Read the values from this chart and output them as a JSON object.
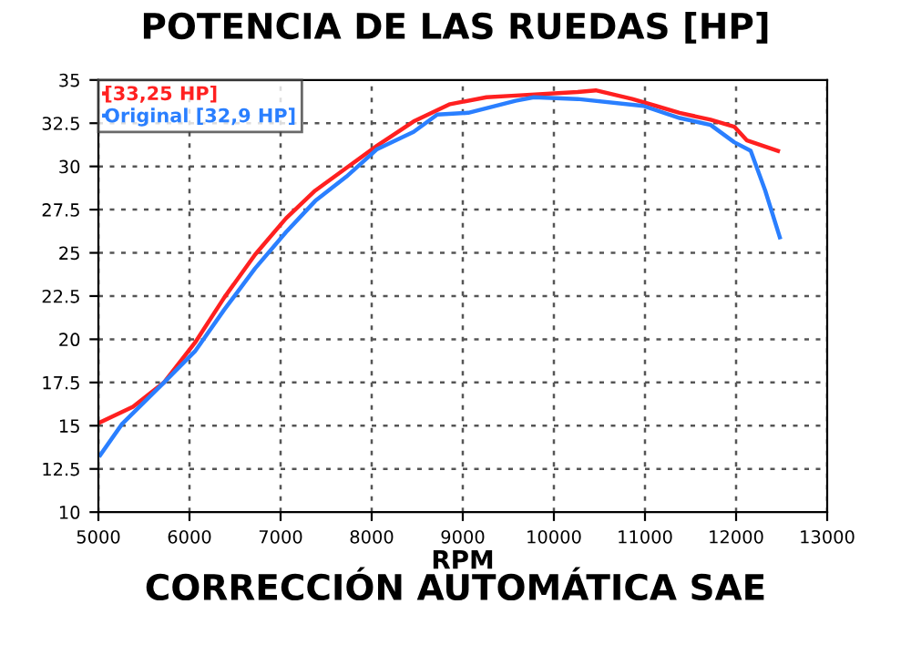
{
  "chart_data": {
    "type": "line",
    "title": "POTENCIA DE LAS RUEDAS [HP]",
    "xlabel": "RPM",
    "annotations": [
      "CORRECCIÓN AUTOMÁTICA SAE"
    ],
    "series": [
      {
        "name": "[33,25 HP]",
        "color": "#ff2020",
        "x": [
          5020,
          5380,
          5720,
          6060,
          6380,
          6720,
          7060,
          7380,
          7720,
          8060,
          8460,
          8860,
          9260,
          9580,
          10260,
          10460,
          10860,
          11120,
          11380,
          11720,
          11980,
          12120,
          12460
        ],
        "values": [
          15.2,
          16.1,
          17.5,
          19.8,
          22.4,
          24.9,
          27.0,
          28.6,
          29.9,
          31.2,
          32.6,
          33.6,
          34.0,
          34.1,
          34.3,
          34.4,
          33.9,
          33.5,
          33.1,
          32.7,
          32.3,
          31.5,
          30.9
        ]
      },
      {
        "name": "Original [32,9 HP]",
        "color": "#2a7fff",
        "x": [
          5020,
          5260,
          5720,
          6060,
          6380,
          6720,
          7060,
          7380,
          7720,
          8060,
          8460,
          8720,
          9060,
          9580,
          9780,
          10260,
          10980,
          11380,
          11720,
          11980,
          12160,
          12320,
          12480
        ],
        "values": [
          13.3,
          15.1,
          17.5,
          19.3,
          21.7,
          24.1,
          26.2,
          28.0,
          29.4,
          31.0,
          32.0,
          33.0,
          33.1,
          33.8,
          34.0,
          33.9,
          33.5,
          32.8,
          32.4,
          31.4,
          30.9,
          28.6,
          25.9
        ]
      }
    ],
    "xlim": [
      5000,
      13000
    ],
    "xticks": [
      5000,
      6000,
      7000,
      8000,
      9000,
      10000,
      11000,
      12000,
      13000
    ],
    "ylim": [
      10,
      35
    ],
    "yticks": [
      10,
      12.5,
      15,
      17.5,
      20,
      22.5,
      25,
      27.5,
      30,
      32.5,
      35
    ],
    "grid": true,
    "legend": "top left",
    "marker": "none",
    "line_style": "solid"
  }
}
